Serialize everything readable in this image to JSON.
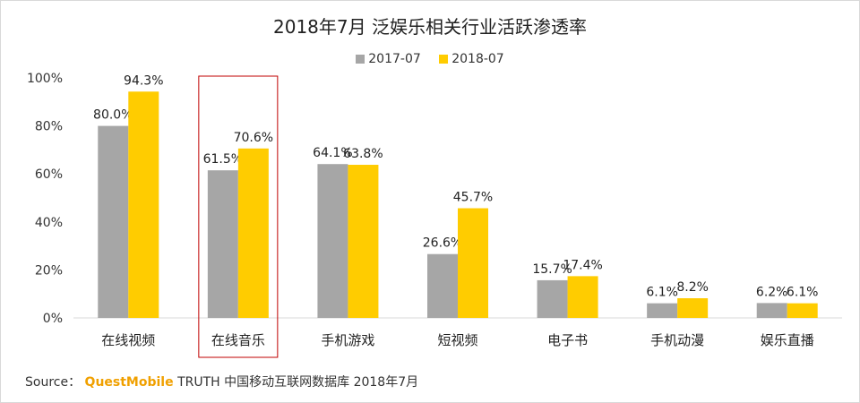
{
  "chart_data": {
    "type": "bar",
    "title": "2018年7月 泛娱乐相关行业活跃渗透率",
    "categories": [
      "在线视频",
      "在线音乐",
      "手机游戏",
      "短视频",
      "电子书",
      "手机动漫",
      "娱乐直播"
    ],
    "series": [
      {
        "name": "2017-07",
        "color": "#a6a6a6",
        "values": [
          80.0,
          61.5,
          64.1,
          26.6,
          15.7,
          6.1,
          6.2
        ]
      },
      {
        "name": "2018-07",
        "color": "#ffcc00",
        "values": [
          94.3,
          70.6,
          63.8,
          45.7,
          17.4,
          8.2,
          6.1
        ]
      }
    ],
    "yticks": [
      "0%",
      "20%",
      "40%",
      "60%",
      "80%",
      "100%"
    ],
    "ylim": [
      0,
      100
    ],
    "grid": false,
    "legend_position": "top-center",
    "highlight": {
      "category": "在线音乐",
      "color": "#c00000"
    }
  },
  "source": {
    "label": "Source：",
    "brand": "QuestMobile",
    "text": "TRUTH 中国移动互联网数据库 2018年7月"
  }
}
